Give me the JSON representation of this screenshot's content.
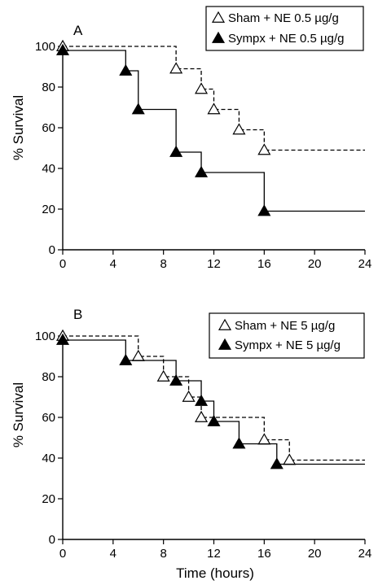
{
  "chart_data": [
    {
      "type": "line",
      "subtype": "step",
      "panel_label": "A",
      "xlabel": "",
      "ylabel": "% Survival",
      "xlim": [
        0,
        24
      ],
      "ylim": [
        0,
        100
      ],
      "xticks": [
        "0",
        "4",
        "8",
        "12",
        "16",
        "20",
        "24"
      ],
      "yticks": [
        "0",
        "20",
        "40",
        "60",
        "80",
        "100"
      ],
      "legend_position": "top-right",
      "series": [
        {
          "name": "Sham + NE 0.5 µg/g",
          "marker": "open-triangle",
          "line_style": "dashed",
          "steps": [
            [
              0,
              100
            ],
            [
              9,
              89
            ],
            [
              11,
              79
            ],
            [
              12,
              69
            ],
            [
              14,
              59
            ],
            [
              16,
              49
            ]
          ],
          "x_end": 24
        },
        {
          "name": "Sympx + NE 0.5 µg/g",
          "marker": "filled-triangle",
          "line_style": "solid",
          "steps": [
            [
              0,
              98
            ],
            [
              5,
              88
            ],
            [
              6,
              69
            ],
            [
              9,
              48
            ],
            [
              11,
              38
            ],
            [
              16,
              19
            ]
          ],
          "x_end": 24
        }
      ]
    },
    {
      "type": "line",
      "subtype": "step",
      "panel_label": "B",
      "xlabel": "Time (hours)",
      "ylabel": "% Survival",
      "xlim": [
        0,
        24
      ],
      "ylim": [
        0,
        100
      ],
      "xticks": [
        "0",
        "4",
        "8",
        "12",
        "16",
        "20",
        "24"
      ],
      "yticks": [
        "0",
        "20",
        "40",
        "60",
        "80",
        "100"
      ],
      "legend_position": "top-right",
      "series": [
        {
          "name": "Sham + NE 5 µg/g",
          "marker": "open-triangle",
          "line_style": "dashed",
          "steps": [
            [
              0,
              100
            ],
            [
              6,
              90
            ],
            [
              8,
              80
            ],
            [
              10,
              70
            ],
            [
              11,
              60
            ],
            [
              16,
              49
            ],
            [
              18,
              39
            ]
          ],
          "x_end": 24
        },
        {
          "name": "Sympx + NE 5 µg/g",
          "marker": "filled-triangle",
          "line_style": "solid",
          "steps": [
            [
              0,
              98
            ],
            [
              5,
              88
            ],
            [
              9,
              78
            ],
            [
              11,
              68
            ],
            [
              12,
              58
            ],
            [
              14,
              47
            ],
            [
              17,
              37
            ]
          ],
          "x_end": 24
        }
      ]
    }
  ]
}
